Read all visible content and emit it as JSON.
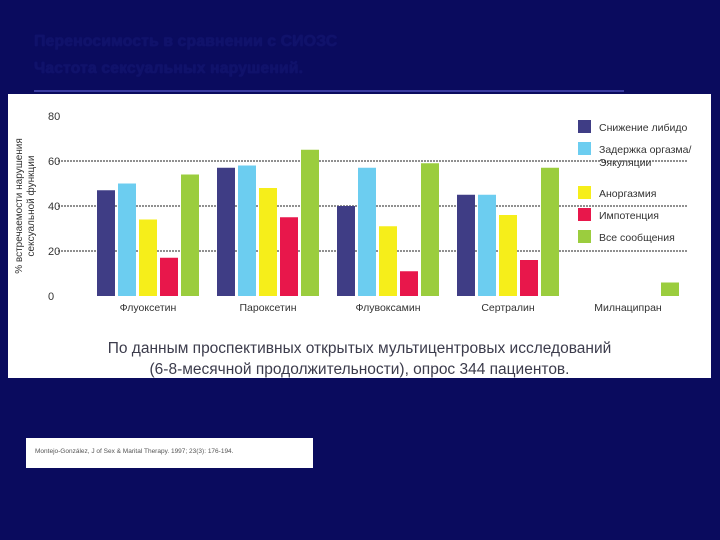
{
  "slide": {
    "title_line1": "Переносимость в сравнении с СИОЗС",
    "title_line2": "Частота сексуальных нарушений."
  },
  "chart_data": {
    "type": "bar",
    "ylabel": "% встречаемости нарушения сексуальной функции",
    "ylim": [
      0,
      80
    ],
    "yticks": [
      0,
      20,
      40,
      60,
      80
    ],
    "grid": true,
    "legend_position": "right",
    "categories": [
      "Флуоксетин",
      "Пароксетин",
      "Флувоксамин",
      "Сертралин",
      "Милнаципран"
    ],
    "series": [
      {
        "name": "Снижение либидо",
        "color": "#3f3d85",
        "values": [
          47,
          57,
          40,
          45,
          0
        ]
      },
      {
        "name": "Задержка оргазма/ Эякуляции",
        "color": "#6ccdf0",
        "values": [
          50,
          58,
          57,
          45,
          0
        ]
      },
      {
        "name": "Аноргазмия",
        "color": "#f6ee1a",
        "values": [
          34,
          48,
          31,
          36,
          0
        ]
      },
      {
        "name": "Импотенция",
        "color": "#e8174b",
        "values": [
          17,
          35,
          11,
          16,
          0
        ]
      },
      {
        "name": "Все сообщения",
        "color": "#9bcd3e",
        "values": [
          54,
          65,
          59,
          57,
          6
        ]
      }
    ]
  },
  "caption": {
    "line1": "По данным проспективных открытых мультицентровых исследований",
    "line2": "(6-8-месячной продолжительности), опрос 344 пациентов."
  },
  "citation": "Montejo-González, J of Sex & Marital Therapy. 1997; 23(3): 176-194."
}
